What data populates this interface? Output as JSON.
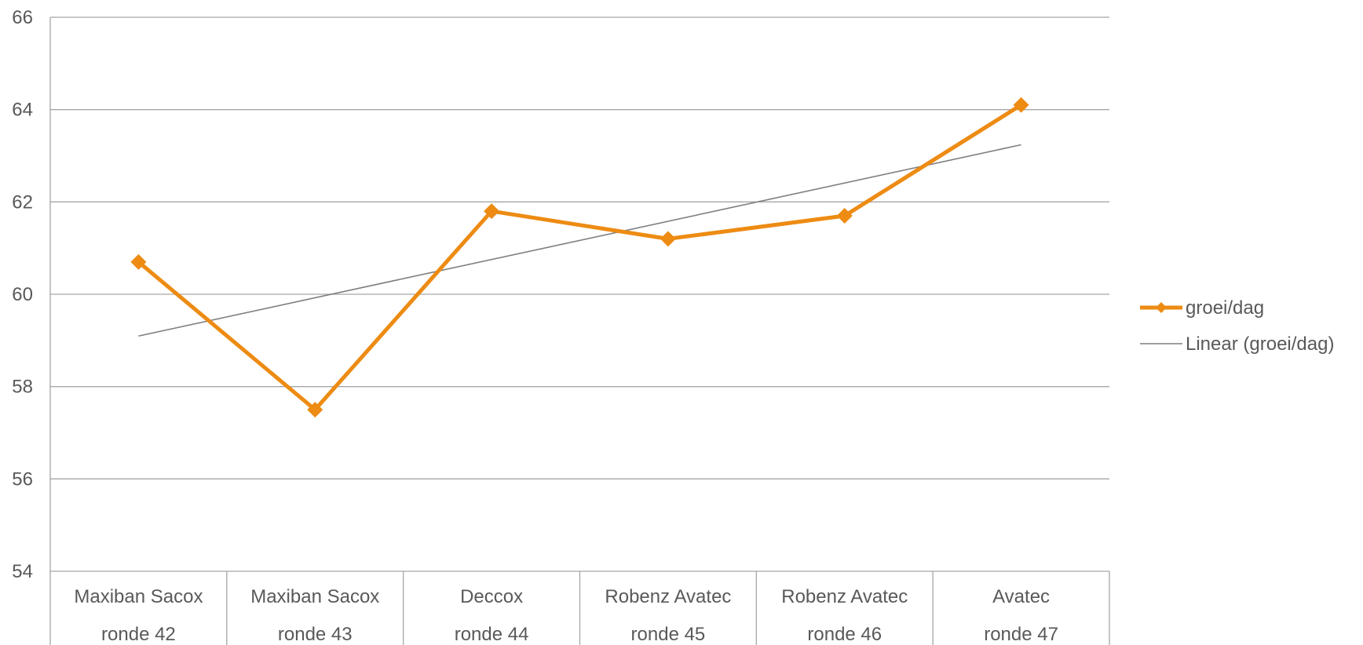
{
  "chart_data": {
    "type": "line",
    "categories": [
      [
        "Maxiban Sacox",
        "ronde 42"
      ],
      [
        "Maxiban Sacox",
        "ronde 43"
      ],
      [
        "Deccox",
        "ronde 44"
      ],
      [
        "Robenz Avatec",
        "ronde 45"
      ],
      [
        "Robenz Avatec",
        "ronde 46"
      ],
      [
        "Avatec",
        "ronde 47"
      ]
    ],
    "series": [
      {
        "name": "groei/dag",
        "values": [
          60.7,
          57.5,
          61.8,
          61.2,
          61.7,
          64.1
        ],
        "color": "#ED8B13",
        "marker": "diamond"
      }
    ],
    "trendline": {
      "name": "Linear (groei/dag)",
      "type": "linear",
      "color": "#7F7F7F"
    },
    "ylim": [
      54,
      66
    ],
    "yticks": [
      "54",
      "56",
      "58",
      "60",
      "62",
      "64",
      "66"
    ],
    "grid": true,
    "legend": "right",
    "title": "",
    "xlabel": "",
    "ylabel": ""
  }
}
